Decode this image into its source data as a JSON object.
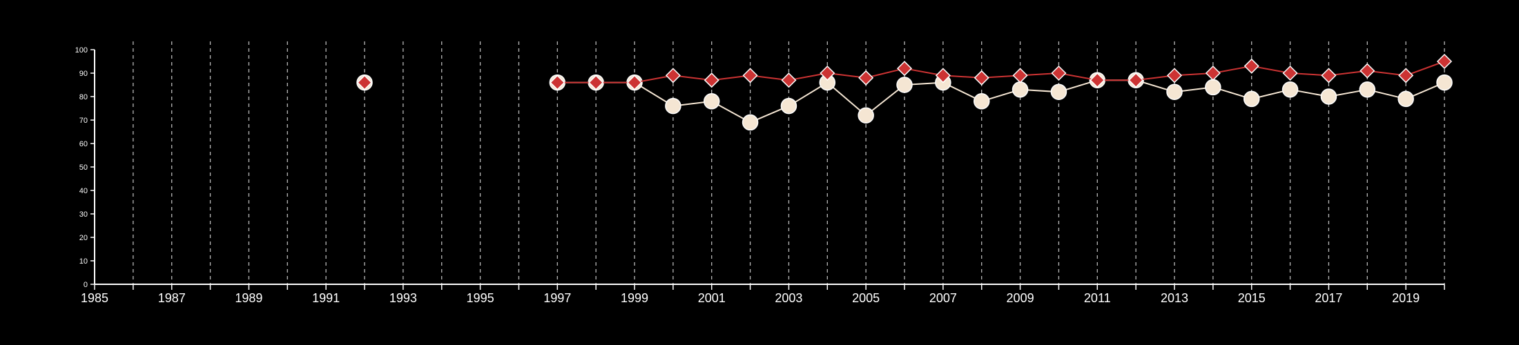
{
  "chart_data": {
    "type": "line",
    "title": "",
    "xlabel": "",
    "ylabel": "",
    "xlim": [
      1985,
      2020
    ],
    "ylim": [
      0,
      100
    ],
    "x_tick_labels": [
      "1985",
      "1987",
      "1989",
      "1991",
      "1993",
      "1995",
      "1997",
      "1999",
      "2001",
      "2003",
      "2005",
      "2007",
      "2009",
      "2011",
      "2013",
      "2015",
      "2017",
      "2019"
    ],
    "y_tick_labels": [
      "0",
      "10",
      "20",
      "30",
      "40",
      "50",
      "60",
      "70",
      "80",
      "90",
      "100"
    ],
    "grid": "vertical dashed lines at every year",
    "legend": "none",
    "background": "#000000",
    "series": [
      {
        "color": "#f5e6d3",
        "marker": "circle",
        "x": [
          1992,
          1997,
          1998,
          1999,
          2000,
          2001,
          2002,
          2003,
          2004,
          2005,
          2006,
          2007,
          2008,
          2009,
          2010,
          2011,
          2012,
          2013,
          2014,
          2015,
          2016,
          2017,
          2018,
          2019,
          2020
        ],
        "values": [
          86,
          86,
          86,
          86,
          76,
          78,
          69,
          76,
          86,
          72,
          85,
          86,
          78,
          83,
          82,
          87,
          87,
          82,
          84,
          79,
          83,
          80,
          83,
          79,
          86
        ]
      },
      {
        "color": "#cc3333",
        "marker": "diamond",
        "x": [
          1992,
          1997,
          1998,
          1999,
          2000,
          2001,
          2002,
          2003,
          2004,
          2005,
          2006,
          2007,
          2008,
          2009,
          2010,
          2011,
          2012,
          2013,
          2014,
          2015,
          2016,
          2017,
          2018,
          2019,
          2020
        ],
        "values": [
          86,
          86,
          86,
          86,
          89,
          87,
          89,
          87,
          90,
          88,
          92,
          89,
          88,
          89,
          90,
          87,
          87,
          89,
          90,
          93,
          90,
          89,
          91,
          89,
          95
        ]
      }
    ]
  }
}
